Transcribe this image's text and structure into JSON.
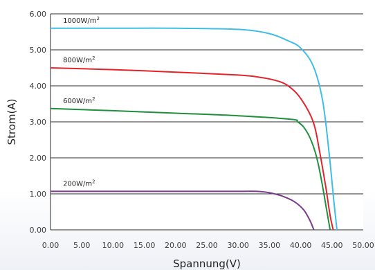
{
  "chart_data": {
    "type": "line",
    "title": "",
    "xlabel": "Spannung(V)",
    "ylabel": "Strom(A)",
    "xlim": [
      0,
      50
    ],
    "ylim": [
      0,
      6
    ],
    "xticks": [
      "0.00",
      "5.00",
      "10.00",
      "15.00",
      "20.00",
      "25.00",
      "30.00",
      "35.00",
      "40.00",
      "45.00",
      "50.00"
    ],
    "yticks": [
      "0.00",
      "1.00",
      "2.00",
      "3.00",
      "4.00",
      "5.00",
      "6.00"
    ],
    "grid": "horizontal",
    "series": [
      {
        "name": "1000W/m²",
        "color": "#3fbde8",
        "x": [
          0,
          10,
          20,
          30,
          35,
          38,
          40,
          42,
          43.5,
          44.5,
          45.3,
          45.8
        ],
        "y": [
          5.6,
          5.6,
          5.6,
          5.57,
          5.45,
          5.25,
          5.05,
          4.55,
          3.6,
          2.2,
          0.8,
          0
        ]
      },
      {
        "name": "800W/m²",
        "color": "#e3232c",
        "x": [
          0,
          10,
          20,
          30,
          33,
          36,
          38,
          40,
          42,
          43,
          44,
          44.7,
          45.2
        ],
        "y": [
          4.5,
          4.45,
          4.38,
          4.3,
          4.25,
          4.15,
          4.0,
          3.65,
          3.0,
          2.2,
          1.2,
          0.4,
          0
        ]
      },
      {
        "name": "600W/m²",
        "color": "#1e8f3c",
        "x": [
          0,
          10,
          20,
          30,
          38.5,
          39.5,
          40.5,
          41.5,
          42.5,
          43.3,
          44.2,
          44.7
        ],
        "y": [
          3.37,
          3.31,
          3.24,
          3.17,
          3.07,
          3.0,
          2.85,
          2.55,
          2.05,
          1.4,
          0.5,
          0
        ]
      },
      {
        "name": "200W/m²",
        "color": "#7a3a8c",
        "x": [
          0,
          10,
          20,
          30,
          33,
          35,
          37,
          39,
          40.5,
          41.5,
          42.1
        ],
        "y": [
          1.07,
          1.07,
          1.07,
          1.07,
          1.07,
          1.03,
          0.94,
          0.78,
          0.55,
          0.25,
          0
        ]
      }
    ]
  }
}
